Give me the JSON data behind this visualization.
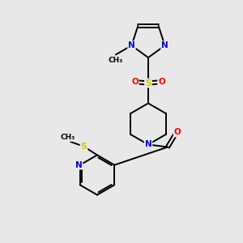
{
  "background_color": "#e8e8e8",
  "bond_color": "#000000",
  "atom_colors": {
    "N": "#0000cc",
    "O": "#ff0000",
    "S": "#cccc00",
    "C": "#000000"
  },
  "figsize": [
    3.0,
    3.0
  ],
  "dpi": 100,
  "xlim": [
    0,
    10
  ],
  "ylim": [
    0,
    10
  ],
  "lw": 1.4
}
